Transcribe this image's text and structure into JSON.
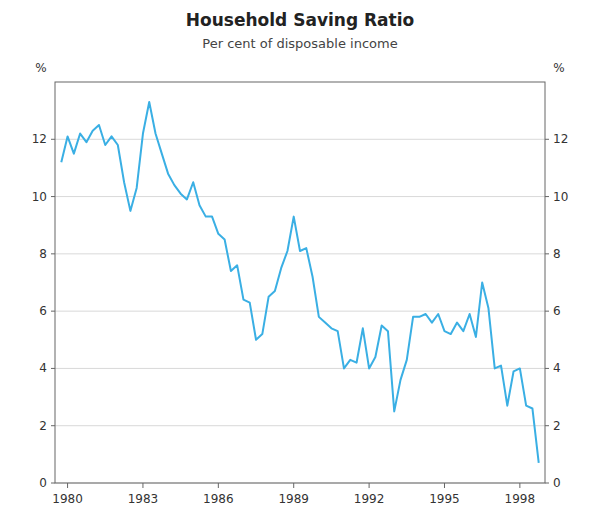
{
  "chart_data": {
    "type": "line",
    "title": "Household Saving Ratio",
    "subtitle": "Per cent of disposable income",
    "y_label": "%",
    "y2_label": "%",
    "color": "#3AAFE4",
    "grid": true,
    "xlim": [
      1979.5,
      1999.0
    ],
    "xticks": [
      1980,
      1983,
      1986,
      1989,
      1992,
      1995,
      1998
    ],
    "ylim": [
      0,
      14
    ],
    "yticks": [
      0,
      2,
      4,
      6,
      8,
      10,
      12
    ],
    "y2lim": [
      0,
      14
    ],
    "y2ticks": [
      0,
      2,
      4,
      6,
      8,
      10,
      12
    ],
    "x": [
      1979.75,
      1980.0,
      1980.25,
      1980.5,
      1980.75,
      1981.0,
      1981.25,
      1981.5,
      1981.75,
      1982.0,
      1982.25,
      1982.5,
      1982.75,
      1983.0,
      1983.25,
      1983.5,
      1983.75,
      1984.0,
      1984.25,
      1984.5,
      1984.75,
      1985.0,
      1985.25,
      1985.5,
      1985.75,
      1986.0,
      1986.25,
      1986.5,
      1986.75,
      1987.0,
      1987.25,
      1987.5,
      1987.75,
      1988.0,
      1988.25,
      1988.5,
      1988.75,
      1989.0,
      1989.25,
      1989.5,
      1989.75,
      1990.0,
      1990.25,
      1990.5,
      1990.75,
      1991.0,
      1991.25,
      1991.5,
      1991.75,
      1992.0,
      1992.25,
      1992.5,
      1992.75,
      1993.0,
      1993.25,
      1993.5,
      1993.75,
      1994.0,
      1994.25,
      1994.5,
      1994.75,
      1995.0,
      1995.25,
      1995.5,
      1995.75,
      1996.0,
      1996.25,
      1996.5,
      1996.75,
      1997.0,
      1997.25,
      1997.5,
      1997.75,
      1998.0,
      1998.25,
      1998.5,
      1998.75
    ],
    "values": [
      11.2,
      12.1,
      11.5,
      12.2,
      11.9,
      12.3,
      12.5,
      11.8,
      12.1,
      11.8,
      10.5,
      9.5,
      10.3,
      12.2,
      13.3,
      12.2,
      11.5,
      10.8,
      10.4,
      10.1,
      9.9,
      10.5,
      9.7,
      9.3,
      9.3,
      8.7,
      8.5,
      7.4,
      7.6,
      6.4,
      6.3,
      5.0,
      5.2,
      6.5,
      6.7,
      7.5,
      8.1,
      9.3,
      8.1,
      8.2,
      7.2,
      5.8,
      5.6,
      5.4,
      5.3,
      4.0,
      4.3,
      4.2,
      5.4,
      4.0,
      4.4,
      5.5,
      5.3,
      2.5,
      3.6,
      4.3,
      5.8,
      5.8,
      5.9,
      5.6,
      5.9,
      5.3,
      5.2,
      5.6,
      5.3,
      5.9,
      5.1,
      7.0,
      6.1,
      4.0,
      4.1,
      2.7,
      3.9,
      4.0,
      2.7,
      2.6,
      0.7
    ]
  }
}
